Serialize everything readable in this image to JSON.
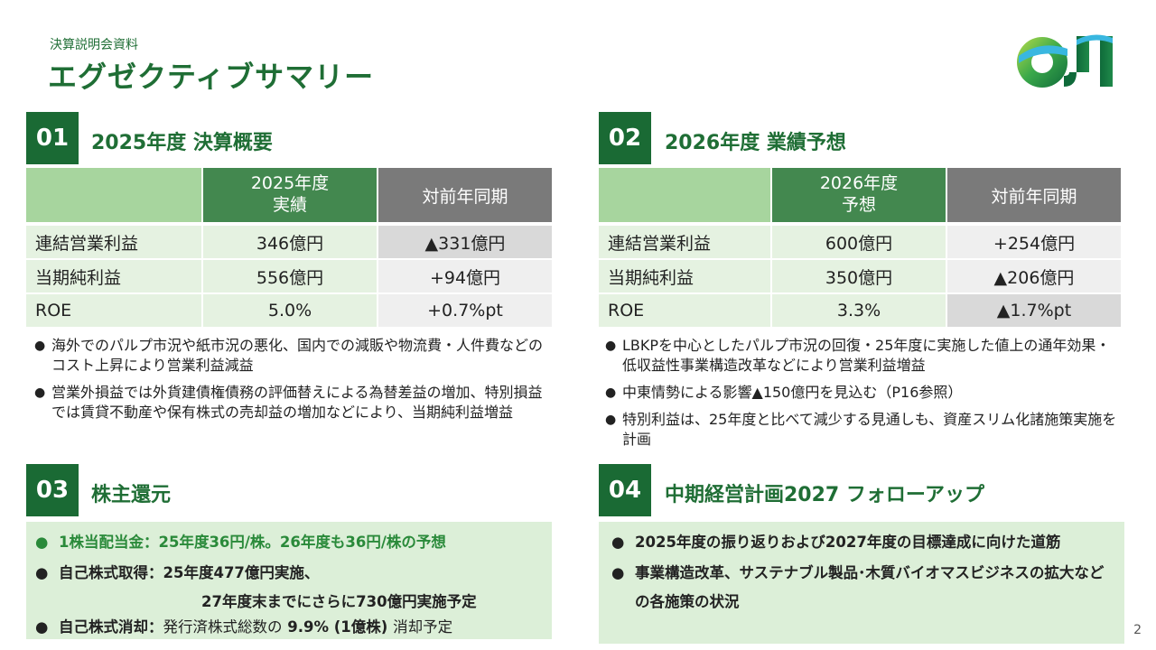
{
  "header": {
    "supertitle": "決算説明会資料",
    "title": "エグゼクティブサマリー",
    "logo_text": "OJI"
  },
  "colors": {
    "brand_green": "#1a6a34",
    "header_green": "#43884f",
    "light_green": "#a7d59e",
    "cell_green": "#e5f2e1",
    "box_green": "#dcefd8"
  },
  "sec1": {
    "num": "01",
    "title": "2025年度 決算概要",
    "col1": "2025年度\n実績",
    "col2": "対前年同期",
    "rows": [
      {
        "label": "連結営業利益",
        "value": "346億円",
        "yoy": "▲331億円"
      },
      {
        "label": "当期純利益",
        "value": "556億円",
        "yoy": "+94億円"
      },
      {
        "label": "ROE",
        "value": "5.0%",
        "yoy": "+0.7%pt"
      }
    ],
    "bullets": [
      "海外でのパルプ市況や紙市況の悪化、国内での減販や物流費・人件費などのコスト上昇により営業利益減益",
      "営業外損益では外貨建債権債務の評価替えによる為替差益の増加、特別損益では賃貸不動産や保有株式の売却益の増加などにより、当期純利益増益"
    ]
  },
  "sec2": {
    "num": "02",
    "title": "2026年度 業績予想",
    "col1": "2026年度\n予想",
    "col2": "対前年同期",
    "rows": [
      {
        "label": "連結営業利益",
        "value": "600億円",
        "yoy": "+254億円"
      },
      {
        "label": "当期純利益",
        "value": "350億円",
        "yoy": "▲206億円"
      },
      {
        "label": "ROE",
        "value": "3.3%",
        "yoy": "▲1.7%pt"
      }
    ],
    "bullets": [
      "LBKPを中心としたパルプ市況の回復・25年度に実施した値上の通年効果・低収益性事業構造改革などにより営業利益増益",
      "中東情勢による影響▲150億円を見込む（P16参照）",
      "特別利益は、25年度と比べて減少する見通しも、資産スリム化諸施策実施を計画"
    ]
  },
  "sec3": {
    "num": "03",
    "title": "株主還元",
    "line1": "1株当配当金：25年度36円/株。26年度も36円/株の予想",
    "line2": "自己株式取得：25年度477億円実施、",
    "line3": "27年度末までにさらに730億円実施予定",
    "line4_bold": "自己株式消却：",
    "line4_mid": "発行済株式総数の",
    "line4_pct": "9.9%",
    "line4_paren": "(1億株)",
    "line4_end": "消却予定"
  },
  "sec4": {
    "num": "04",
    "title": "中期経営計画2027 フォローアップ",
    "line1": "2025年度の振り返りおよび2027年度の目標達成に向けた道筋",
    "line2": "事業構造改革、サステナブル製品･木質バイオマスビジネスの拡大など",
    "line3": "の各施策の状況"
  },
  "page_number": "2"
}
